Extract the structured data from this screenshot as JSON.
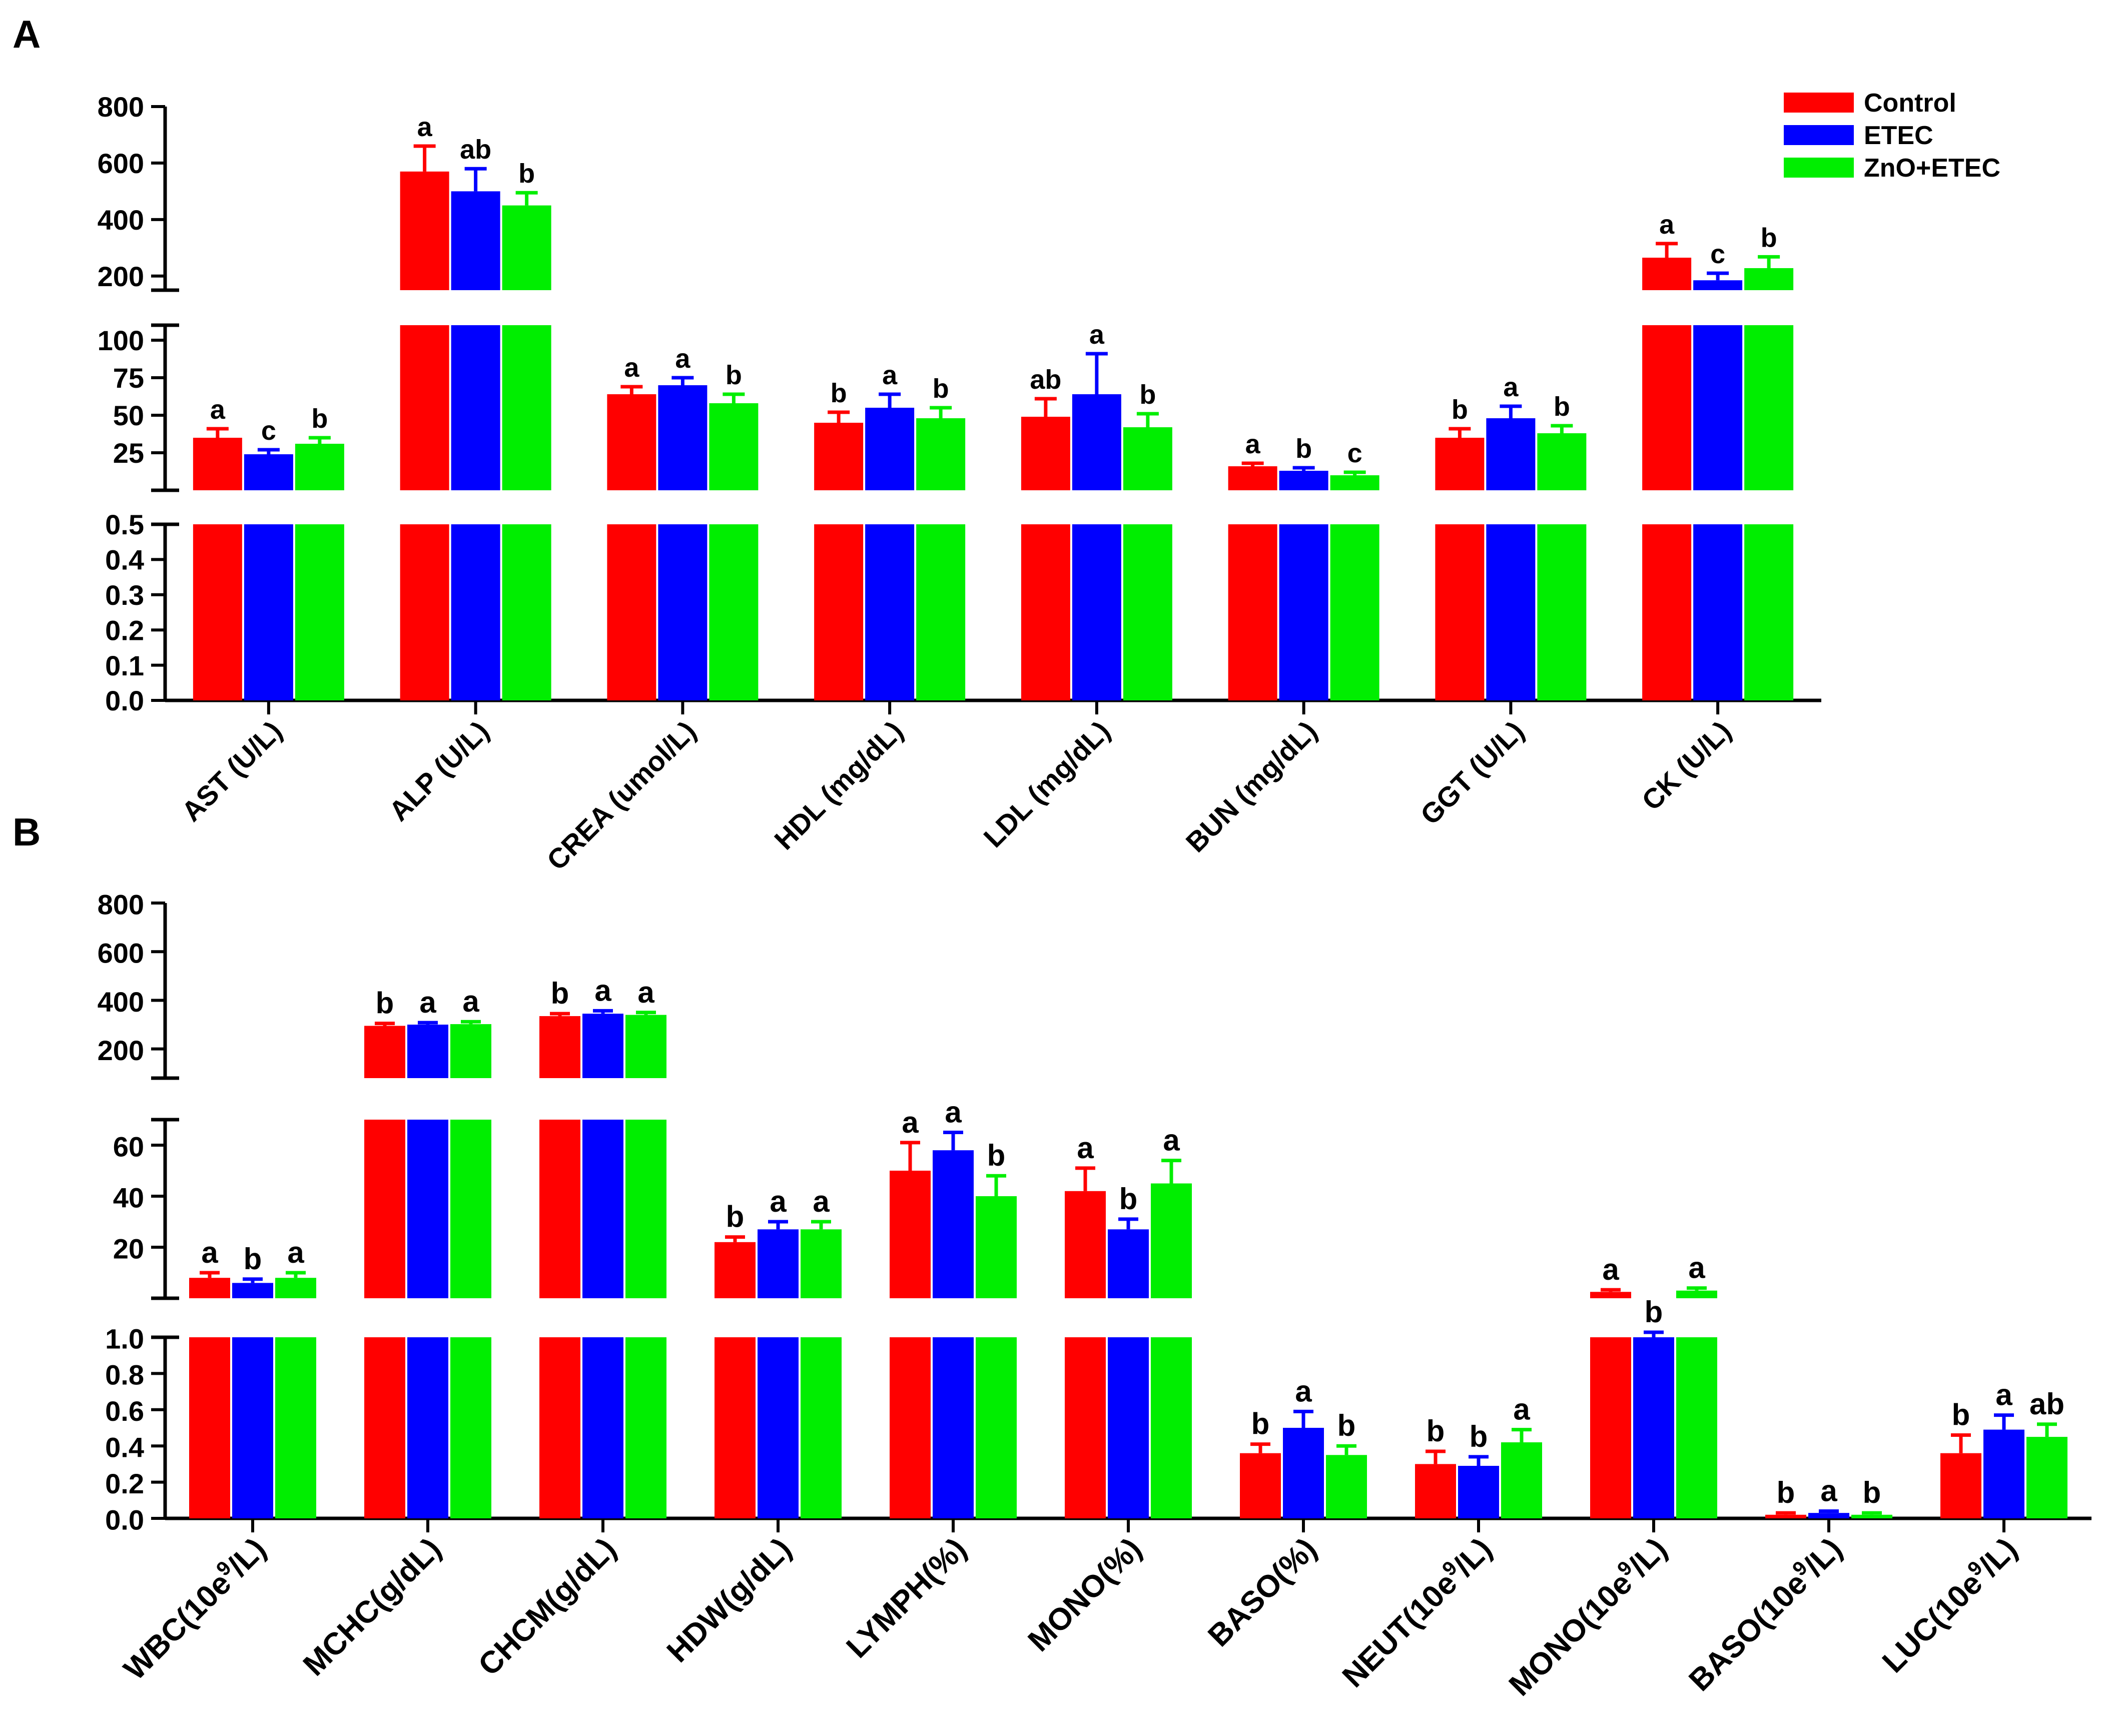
{
  "panels": {
    "A": "A",
    "B": "B"
  },
  "legend": [
    {
      "label": "Control",
      "color": "#ff0000"
    },
    {
      "label": "ETEC",
      "color": "#0000ff"
    },
    {
      "label": "ZnO+ETEC",
      "color": "#00ee00"
    }
  ],
  "chart_data": [
    {
      "panel": "A",
      "type": "bar",
      "broken_y_axis": true,
      "y_segments": [
        {
          "range": [
            0,
            0.5
          ],
          "ticks": [
            "0.0",
            "0.1",
            "0.2",
            "0.3",
            "0.4",
            "0.5"
          ]
        },
        {
          "range": [
            0,
            110
          ],
          "ticks": [
            "25",
            "50",
            "75",
            "100"
          ]
        },
        {
          "range": [
            150,
            800
          ],
          "ticks": [
            "200",
            "400",
            "600",
            "800"
          ]
        }
      ],
      "categories": [
        "AST (U/L)",
        "ALP (U/L)",
        "CREA (umol/L)",
        "HDL (mg/dL)",
        "LDL (mg/dL)",
        "BUN (mg/dL)",
        "GGT (U/L)",
        "CK (U/L)"
      ],
      "series": [
        {
          "name": "Control",
          "values": [
            35,
            570,
            64,
            45,
            49,
            16,
            35,
            265
          ],
          "errors": [
            6,
            90,
            5,
            7,
            12,
            2,
            6,
            50
          ],
          "letters": [
            "a",
            "a",
            "a",
            "b",
            "ab",
            "a",
            "b",
            "a"
          ]
        },
        {
          "name": "ETEC",
          "values": [
            24,
            500,
            70,
            55,
            64,
            13,
            48,
            185
          ],
          "errors": [
            3,
            80,
            5,
            9,
            27,
            2,
            8,
            25
          ],
          "letters": [
            "c",
            "ab",
            "a",
            "a",
            "a",
            "b",
            "a",
            "c"
          ]
        },
        {
          "name": "ZnO+ETEC",
          "values": [
            31,
            450,
            58,
            48,
            42,
            10,
            38,
            228
          ],
          "errors": [
            4,
            45,
            6,
            7,
            9,
            2,
            5,
            40
          ],
          "letters": [
            "b",
            "b",
            "b",
            "b",
            "b",
            "c",
            "b",
            "b"
          ]
        }
      ]
    },
    {
      "panel": "B",
      "type": "bar",
      "broken_y_axis": true,
      "y_segments": [
        {
          "range": [
            0,
            1.0
          ],
          "ticks": [
            "0.0",
            "0.2",
            "0.4",
            "0.6",
            "0.8",
            "1.0"
          ]
        },
        {
          "range": [
            0,
            70
          ],
          "ticks": [
            "20",
            "40",
            "60"
          ]
        },
        {
          "range": [
            80,
            800
          ],
          "ticks": [
            "200",
            "400",
            "600",
            "800"
          ]
        }
      ],
      "categories": [
        {
          "pre": "WBC(10e",
          "sup": "9",
          "post": "/L)"
        },
        {
          "pre": "MCHC(g/dL)",
          "sup": "",
          "post": ""
        },
        {
          "pre": "CHCM(g/dL)",
          "sup": "",
          "post": ""
        },
        {
          "pre": "HDW(g/dL)",
          "sup": "",
          "post": ""
        },
        {
          "pre": "LYMPH(%)",
          "sup": "",
          "post": ""
        },
        {
          "pre": "MONO(%)",
          "sup": "",
          "post": ""
        },
        {
          "pre": "BASO(%)",
          "sup": "",
          "post": ""
        },
        {
          "pre": "NEUT(10e",
          "sup": "9",
          "post": "/L)"
        },
        {
          "pre": "MONO(10e",
          "sup": "9",
          "post": "/L)"
        },
        {
          "pre": "BASO(10e",
          "sup": "9",
          "post": "/L)"
        },
        {
          "pre": "LUC(10e",
          "sup": "9",
          "post": "/L)"
        }
      ],
      "series": [
        {
          "name": "Control",
          "values": [
            8,
            295,
            335,
            22,
            50,
            42,
            0.36,
            0.3,
            2.5,
            0.02,
            0.36
          ],
          "errors": [
            2,
            10,
            10,
            2,
            11,
            9,
            0.05,
            0.07,
            0.8,
            0.01,
            0.1
          ],
          "letters": [
            "a",
            "b",
            "b",
            "b",
            "a",
            "a",
            "b",
            "b",
            "a",
            "b",
            "b"
          ]
        },
        {
          "name": "ETEC",
          "values": [
            6,
            300,
            345,
            27,
            58,
            27,
            0.5,
            0.29,
            1.0,
            0.03,
            0.49
          ],
          "errors": [
            1.5,
            8,
            12,
            3,
            7,
            4,
            0.09,
            0.05,
            0.5,
            0.01,
            0.08
          ],
          "letters": [
            "b",
            "a",
            "a",
            "a",
            "a",
            "b",
            "a",
            "b",
            "b",
            "a",
            "a"
          ]
        },
        {
          "name": "ZnO+ETEC",
          "values": [
            8,
            302,
            340,
            27,
            40,
            45,
            0.35,
            0.42,
            3.0,
            0.02,
            0.45
          ],
          "errors": [
            2,
            10,
            10,
            3,
            8,
            9,
            0.05,
            0.07,
            1.0,
            0.01,
            0.07
          ],
          "letters": [
            "a",
            "a",
            "a",
            "a",
            "b",
            "a",
            "b",
            "a",
            "a",
            "b",
            "ab"
          ]
        }
      ]
    }
  ]
}
